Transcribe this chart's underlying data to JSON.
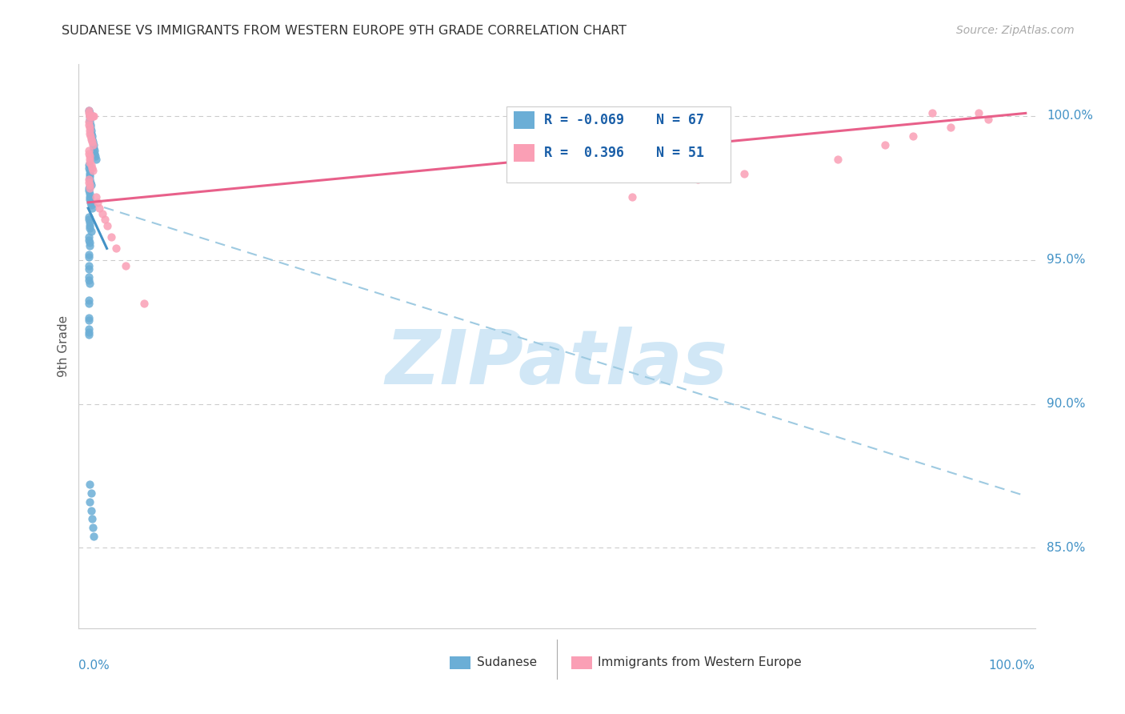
{
  "title": "SUDANESE VS IMMIGRANTS FROM WESTERN EUROPE 9TH GRADE CORRELATION CHART",
  "source": "Source: ZipAtlas.com",
  "ylabel": "9th Grade",
  "watermark": "ZIPatlas",
  "ytick_labels": [
    "85.0%",
    "90.0%",
    "95.0%",
    "100.0%"
  ],
  "ytick_vals": [
    0.85,
    0.9,
    0.95,
    1.0
  ],
  "color_blue": "#6baed6",
  "color_pink": "#fa9fb5",
  "color_blue_line": "#4292c6",
  "color_pink_line": "#e8608a",
  "color_dashed": "#9ecae1",
  "color_ytick": "#4292c6",
  "sudanese_x": [
    0.0008,
    0.0012,
    0.0015,
    0.0018,
    0.002,
    0.0022,
    0.0025,
    0.003,
    0.0035,
    0.004,
    0.0045,
    0.005,
    0.0055,
    0.006,
    0.0065,
    0.007,
    0.0075,
    0.008,
    0.0008,
    0.001,
    0.0012,
    0.0015,
    0.0018,
    0.002,
    0.0025,
    0.003,
    0.0008,
    0.001,
    0.0012,
    0.0015,
    0.002,
    0.0025,
    0.003,
    0.004,
    0.0008,
    0.001,
    0.0012,
    0.0015,
    0.002,
    0.003,
    0.0008,
    0.001,
    0.0012,
    0.002,
    0.0008,
    0.001,
    0.0008,
    0.001,
    0.0008,
    0.001,
    0.0015,
    0.0008,
    0.001,
    0.0008,
    0.0009,
    0.0008,
    0.0008,
    0.0008,
    0.002,
    0.003,
    0.002,
    0.003,
    0.004,
    0.005,
    0.006
  ],
  "sudanese_y": [
    1.002,
    1.001,
    1.0,
    0.999,
    0.998,
    0.997,
    0.996,
    0.995,
    0.994,
    0.993,
    0.992,
    0.991,
    0.99,
    0.989,
    0.988,
    0.987,
    0.986,
    0.985,
    0.983,
    0.982,
    0.981,
    0.98,
    0.979,
    0.978,
    0.977,
    0.976,
    0.975,
    0.974,
    0.973,
    0.972,
    0.971,
    0.97,
    0.969,
    0.968,
    0.965,
    0.964,
    0.963,
    0.962,
    0.961,
    0.96,
    0.958,
    0.957,
    0.956,
    0.955,
    0.952,
    0.951,
    0.948,
    0.947,
    0.944,
    0.943,
    0.942,
    0.936,
    0.935,
    0.93,
    0.929,
    0.926,
    0.925,
    0.924,
    0.872,
    0.869,
    0.866,
    0.863,
    0.86,
    0.857,
    0.854
  ],
  "western_x": [
    0.0008,
    0.001,
    0.0012,
    0.0015,
    0.002,
    0.0025,
    0.003,
    0.004,
    0.005,
    0.006,
    0.0008,
    0.001,
    0.0012,
    0.0015,
    0.002,
    0.0025,
    0.003,
    0.004,
    0.005,
    0.0008,
    0.001,
    0.0012,
    0.0015,
    0.002,
    0.003,
    0.004,
    0.005,
    0.0008,
    0.001,
    0.0012,
    0.002,
    0.008,
    0.01,
    0.012,
    0.015,
    0.018,
    0.02,
    0.025,
    0.03,
    0.04,
    0.06,
    0.58,
    0.9,
    0.95,
    0.65,
    0.7,
    0.8,
    0.85,
    0.88,
    0.92,
    0.96
  ],
  "western_y": [
    1.002,
    1.001,
    1.0,
    1.0,
    1.0,
    1.0,
    1.0,
    1.0,
    1.0,
    1.0,
    0.998,
    0.997,
    0.996,
    0.995,
    0.994,
    0.993,
    0.992,
    0.991,
    0.99,
    0.988,
    0.987,
    0.986,
    0.985,
    0.984,
    0.983,
    0.982,
    0.981,
    0.978,
    0.977,
    0.976,
    0.975,
    0.972,
    0.97,
    0.968,
    0.966,
    0.964,
    0.962,
    0.958,
    0.954,
    0.948,
    0.935,
    0.972,
    1.001,
    1.001,
    0.978,
    0.98,
    0.985,
    0.99,
    0.993,
    0.996,
    0.999
  ]
}
